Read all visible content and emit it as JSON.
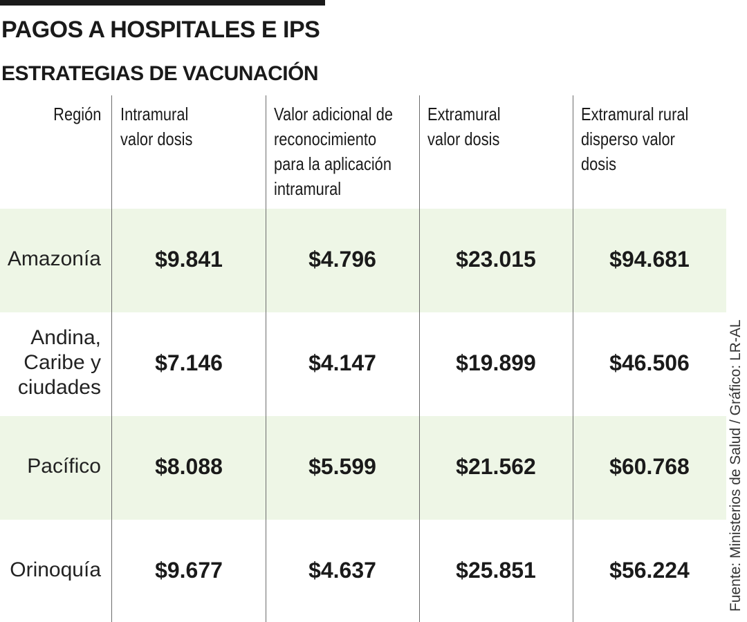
{
  "header": {
    "title": "PAGOS A HOSPITALES E IPS",
    "subtitle": "ESTRATEGIAS DE VACUNACIÓN"
  },
  "table": {
    "columns": [
      "Región",
      "Intramural\nvalor dosis",
      "Valor adicional de\nreconocimiento\npara la aplicación\nintramural",
      "Extramural\nvalor dosis",
      "Extramural rural\ndisperso valor\ndosis"
    ],
    "rows": [
      {
        "region": "Amazonía",
        "values": [
          "$9.841",
          "$4.796",
          "$23.015",
          "$94.681"
        ]
      },
      {
        "region": "Andina,\nCaribe y\nciudades",
        "values": [
          "$7.146",
          "$4.147",
          "$19.899",
          "$46.506"
        ]
      },
      {
        "region": "Pacífico",
        "values": [
          "$8.088",
          "$5.599",
          "$21.562",
          "$60.768"
        ]
      },
      {
        "region": "Orinoquía",
        "values": [
          "$9.677",
          "$4.637",
          "$25.851",
          "$56.224"
        ]
      }
    ],
    "band_color": "#eef6e6"
  },
  "chart_data": {
    "type": "table",
    "title": "PAGOS A HOSPITALES E IPS",
    "subtitle": "ESTRATEGIAS DE VACUNACIÓN",
    "columns": [
      "Región",
      "Intramural valor dosis",
      "Valor adicional de reconocimiento para la aplicación intramural",
      "Extramural valor dosis",
      "Extramural rural disperso valor dosis"
    ],
    "rows": [
      [
        "Amazonía",
        9841,
        4796,
        23015,
        94681
      ],
      [
        "Andina, Caribe y ciudades",
        7146,
        4147,
        19899,
        46506
      ],
      [
        "Pacífico",
        8088,
        5599,
        21562,
        60768
      ],
      [
        "Orinoquía",
        9677,
        4637,
        25851,
        56224
      ]
    ]
  },
  "footer": {
    "source": "Fuente: Ministerios de Salud / Gráfico: LR-AL"
  }
}
